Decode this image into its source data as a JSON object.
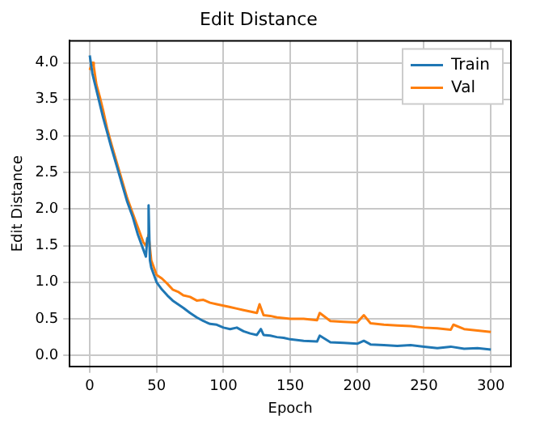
{
  "chart_data": {
    "type": "line",
    "title": "Edit Distance",
    "xlabel": "Epoch",
    "ylabel": "Edit Distance",
    "xlim": [
      -15,
      315
    ],
    "ylim": [
      -0.15,
      4.3
    ],
    "xticks": [
      0,
      50,
      100,
      150,
      200,
      250,
      300
    ],
    "yticks": [
      {
        "value": 0,
        "label": "0.0"
      },
      0.5,
      {
        "value": 1,
        "label": "1.0"
      },
      1.5,
      {
        "value": 2,
        "label": "2.0"
      },
      2.5,
      {
        "value": 3,
        "label": "3.0"
      },
      3.5,
      {
        "value": 4,
        "label": "4.0"
      }
    ],
    "grid": true,
    "legend": "top right",
    "marker": "none",
    "line_style": "solid",
    "series": [
      {
        "name": "Train",
        "color": "#1f77b4",
        "x": [
          0,
          2,
          4,
          6,
          8,
          10,
          13,
          16,
          20,
          24,
          28,
          32,
          36,
          40,
          42,
          43,
          44,
          45,
          46,
          48,
          50,
          54,
          58,
          62,
          66,
          70,
          75,
          80,
          85,
          90,
          95,
          100,
          105,
          110,
          115,
          120,
          125,
          128,
          130,
          135,
          140,
          145,
          150,
          160,
          170,
          172,
          180,
          190,
          200,
          205,
          210,
          220,
          230,
          240,
          250,
          260,
          270,
          280,
          290,
          300
        ],
        "values": [
          4.1,
          3.85,
          3.7,
          3.55,
          3.4,
          3.25,
          3.05,
          2.85,
          2.6,
          2.35,
          2.1,
          1.9,
          1.65,
          1.45,
          1.35,
          1.6,
          2.05,
          1.3,
          1.2,
          1.1,
          1.0,
          0.9,
          0.82,
          0.75,
          0.7,
          0.65,
          0.58,
          0.52,
          0.47,
          0.43,
          0.42,
          0.38,
          0.36,
          0.38,
          0.33,
          0.3,
          0.28,
          0.36,
          0.28,
          0.27,
          0.25,
          0.24,
          0.22,
          0.2,
          0.19,
          0.27,
          0.18,
          0.17,
          0.16,
          0.2,
          0.15,
          0.14,
          0.13,
          0.14,
          0.12,
          0.1,
          0.12,
          0.09,
          0.1,
          0.08
        ]
      },
      {
        "name": "Val",
        "color": "#ff7f0e",
        "x": [
          0,
          2,
          3,
          5,
          8,
          10,
          13,
          16,
          20,
          24,
          28,
          32,
          36,
          40,
          42,
          44,
          46,
          48,
          50,
          54,
          58,
          62,
          66,
          70,
          75,
          80,
          85,
          90,
          95,
          100,
          105,
          110,
          115,
          120,
          125,
          127,
          130,
          135,
          140,
          150,
          160,
          170,
          172,
          180,
          190,
          200,
          205,
          210,
          220,
          230,
          240,
          250,
          260,
          270,
          272,
          280,
          290,
          300
        ],
        "values": [
          3.9,
          4.0,
          3.95,
          3.7,
          3.5,
          3.35,
          3.1,
          2.9,
          2.65,
          2.4,
          2.15,
          1.95,
          1.75,
          1.55,
          1.5,
          1.65,
          1.3,
          1.2,
          1.1,
          1.05,
          0.98,
          0.9,
          0.87,
          0.82,
          0.8,
          0.75,
          0.76,
          0.72,
          0.7,
          0.68,
          0.66,
          0.64,
          0.62,
          0.6,
          0.58,
          0.7,
          0.55,
          0.54,
          0.52,
          0.5,
          0.5,
          0.48,
          0.58,
          0.47,
          0.46,
          0.45,
          0.55,
          0.44,
          0.42,
          0.41,
          0.4,
          0.38,
          0.37,
          0.35,
          0.42,
          0.36,
          0.34,
          0.32
        ]
      }
    ]
  }
}
